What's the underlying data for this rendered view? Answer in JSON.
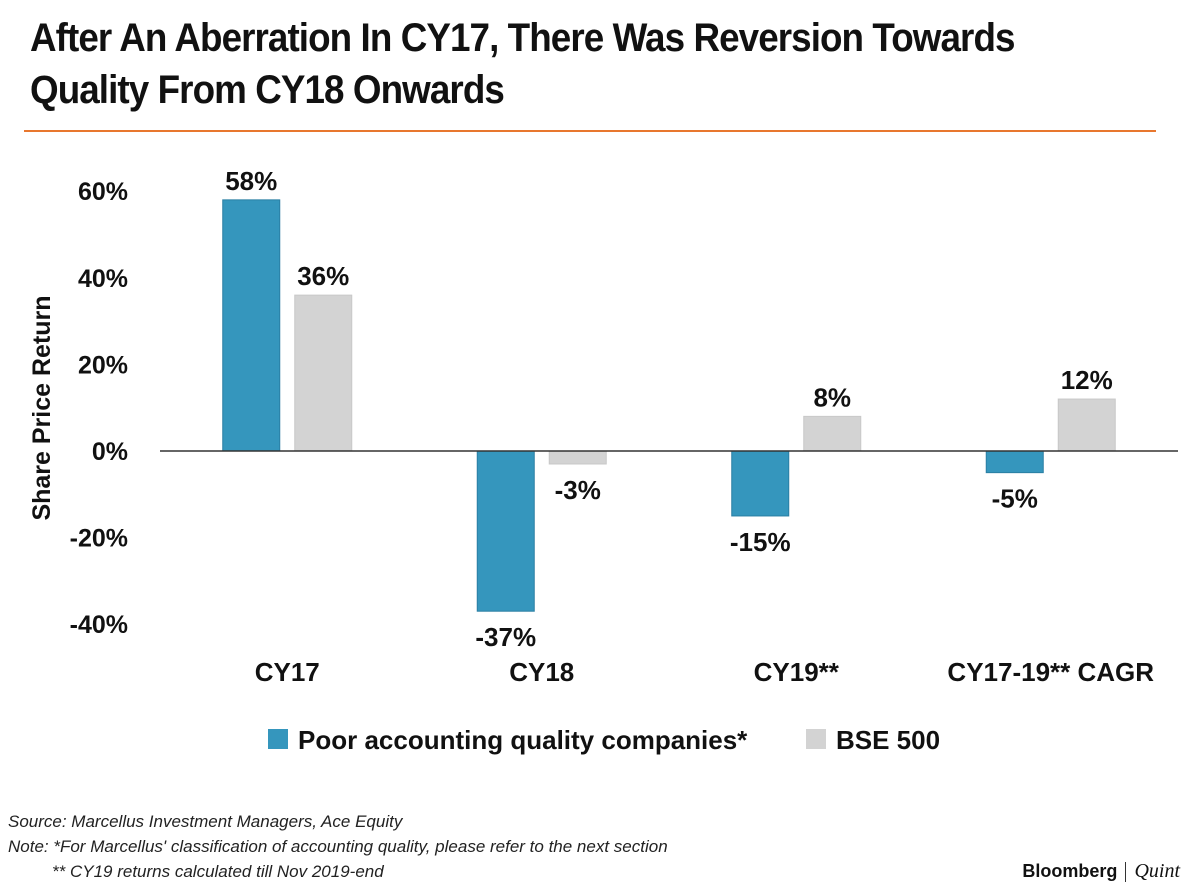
{
  "title": "After An Aberration In CY17, There Was Reversion Towards Quality From CY18 Onwards",
  "footnotes": {
    "source": "Source: Marcellus Investment Managers, Ace Equity",
    "note1": "Note: *For Marcellus' classification of accounting quality, please refer to the next section",
    "note2": "** CY19 returns calculated till Nov 2019-end"
  },
  "brand": {
    "left": "Bloomberg",
    "right": "Quint"
  },
  "colors": {
    "series1": "#3596bd",
    "series2": "#d3d3d3",
    "accent": "#e8772e"
  },
  "chart_data": {
    "type": "bar",
    "title": "After An Aberration In CY17, There Was Reversion Towards Quality From CY18 Onwards",
    "xlabel": "",
    "ylabel": "Share Price Return",
    "ylim": [
      -40,
      60
    ],
    "yticks": [
      60,
      40,
      20,
      0,
      -20,
      -40
    ],
    "ytick_labels": [
      "60%",
      "40%",
      "20%",
      "0%",
      "-20%",
      "-40%"
    ],
    "categories": [
      "CY17",
      "CY18",
      "CY19**",
      "CY17-19** CAGR"
    ],
    "series": [
      {
        "name": "Poor accounting quality companies*",
        "values": [
          58,
          -37,
          -15,
          -5
        ],
        "labels": [
          "58%",
          "-37%",
          "-15%",
          "-5%"
        ],
        "color": "#3596bd"
      },
      {
        "name": "BSE 500",
        "values": [
          36,
          -3,
          8,
          12
        ],
        "labels": [
          "36%",
          "-3%",
          "8%",
          "12%"
        ],
        "color": "#d3d3d3"
      }
    ],
    "legend": "bottom-center",
    "grid": false
  }
}
